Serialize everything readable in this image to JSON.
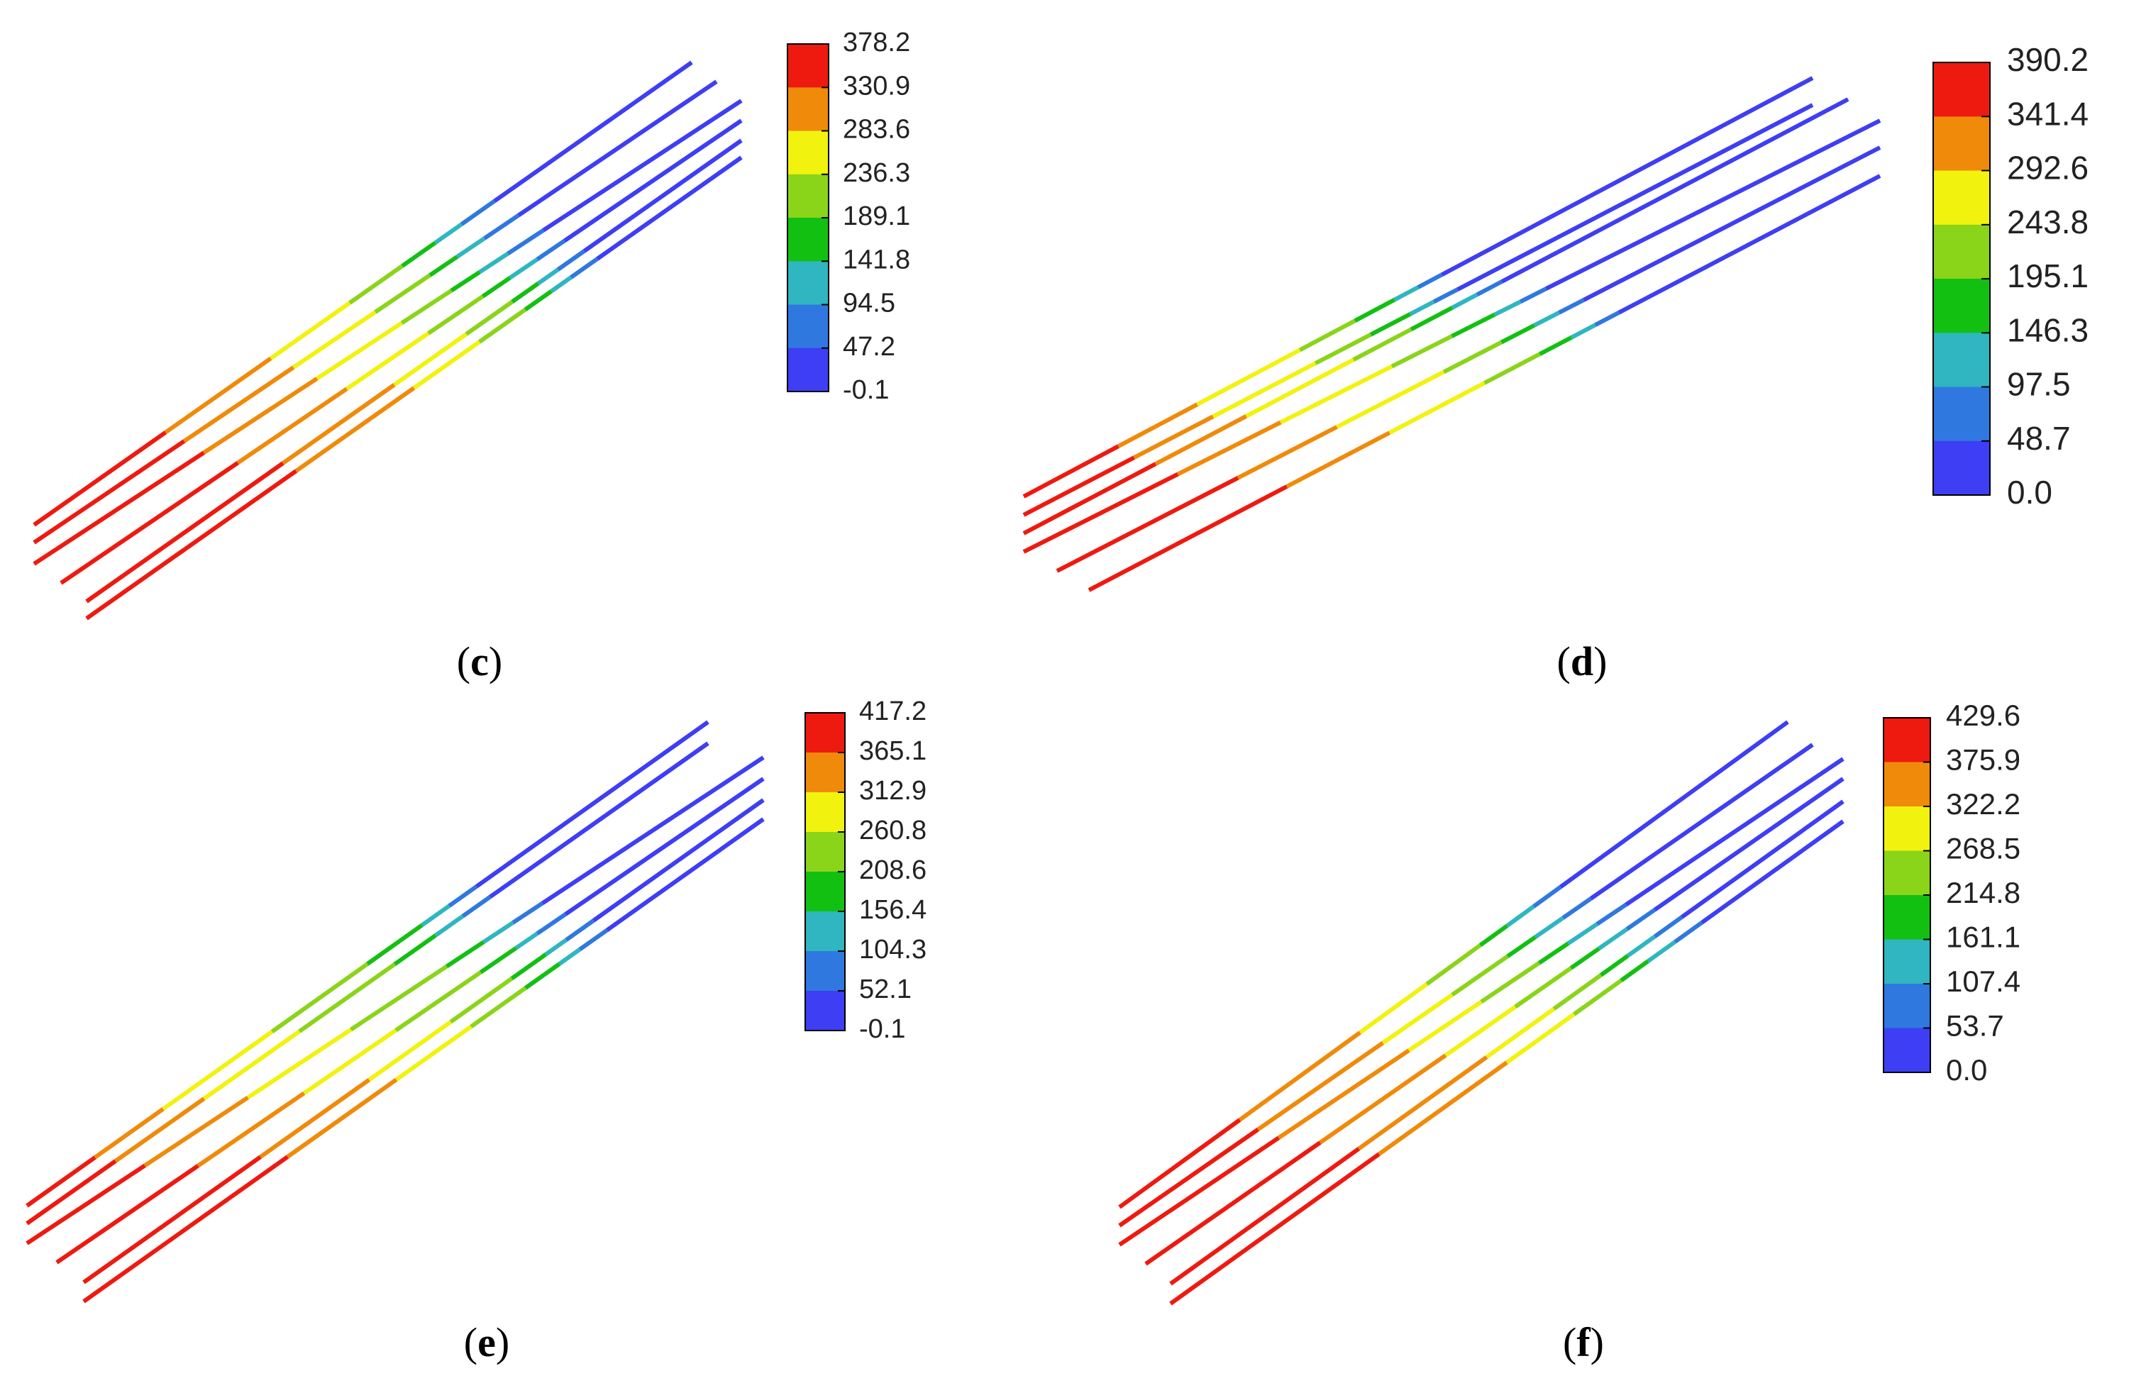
{
  "colorbar_colors": [
    "#3e3ef5",
    "#2f78e0",
    "#2fb6c0",
    "#12c012",
    "#8ad41a",
    "#f2f20f",
    "#f08a0a",
    "#ee1a10"
  ],
  "panels": [
    {
      "label": "c",
      "legend_values": [
        "378.2",
        "330.9",
        "283.6",
        "236.3",
        "189.1",
        "141.8",
        "94.5",
        "47.2",
        "-0.1"
      ]
    },
    {
      "label": "d",
      "legend_values": [
        "390.2",
        "341.4",
        "292.6",
        "243.8",
        "195.1",
        "146.3",
        "97.5",
        "48.7",
        "0.0"
      ]
    },
    {
      "label": "e",
      "legend_values": [
        "417.2",
        "365.1",
        "312.9",
        "260.8",
        "208.6",
        "156.4",
        "104.3",
        "52.1",
        "-0.1"
      ]
    },
    {
      "label": "f",
      "legend_values": [
        "429.6",
        "375.9",
        "322.2",
        "268.5",
        "214.8",
        "161.1",
        "107.4",
        "53.7",
        "0.0"
      ]
    }
  ]
}
